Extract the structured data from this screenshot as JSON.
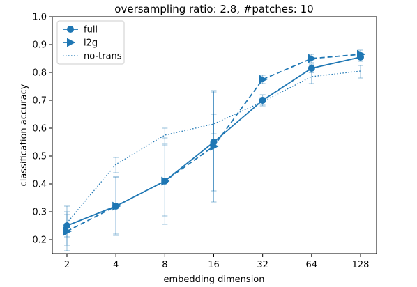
{
  "chart_data": {
    "type": "line",
    "title": "oversampling ratio: 2.8, #patches: 10",
    "xlabel": "embedding dimension",
    "ylabel": "classification accuracy",
    "x_scale": "log2",
    "x": [
      2,
      4,
      8,
      16,
      32,
      64,
      128
    ],
    "x_tick_labels": [
      "2",
      "4",
      "8",
      "16",
      "32",
      "64",
      "128"
    ],
    "ylim": [
      0.15,
      1.0
    ],
    "y_ticks": [
      0.2,
      0.3,
      0.4,
      0.5,
      0.6,
      0.7,
      0.8,
      0.9,
      1.0
    ],
    "y_tick_labels": [
      "0.2",
      "0.3",
      "0.4",
      "0.5",
      "0.6",
      "0.7",
      "0.8",
      "0.9",
      "1.0"
    ],
    "grid": false,
    "legend_position": "top-left",
    "color": "#1f77b4",
    "series": [
      {
        "name": "full",
        "style": "solid",
        "marker": "circle",
        "values": [
          0.25,
          0.32,
          0.41,
          0.55,
          0.7,
          0.815,
          0.855
        ],
        "err_low": [
          0.21,
          0.22,
          0.285,
          0.375,
          0.685,
          0.8,
          0.84
        ],
        "err_high": [
          0.29,
          0.425,
          0.54,
          0.73,
          0.72,
          0.83,
          0.87
        ]
      },
      {
        "name": "l2g",
        "style": "dashed",
        "marker": "triangle-right",
        "values": [
          0.23,
          0.32,
          0.41,
          0.535,
          0.775,
          0.85,
          0.865
        ],
        "err_low": [
          0.18,
          0.215,
          0.255,
          0.335,
          0.76,
          0.835,
          0.85
        ],
        "err_high": [
          0.3,
          0.425,
          0.565,
          0.735,
          0.79,
          0.865,
          0.88
        ]
      },
      {
        "name": "no-trans",
        "style": "dotted",
        "marker": "none",
        "values": [
          0.26,
          0.47,
          0.575,
          0.615,
          0.695,
          0.785,
          0.805
        ],
        "err_low": [
          0.16,
          0.44,
          0.545,
          0.58,
          0.68,
          0.76,
          0.78
        ],
        "err_high": [
          0.32,
          0.495,
          0.6,
          0.65,
          0.71,
          0.8,
          0.825
        ]
      }
    ]
  }
}
